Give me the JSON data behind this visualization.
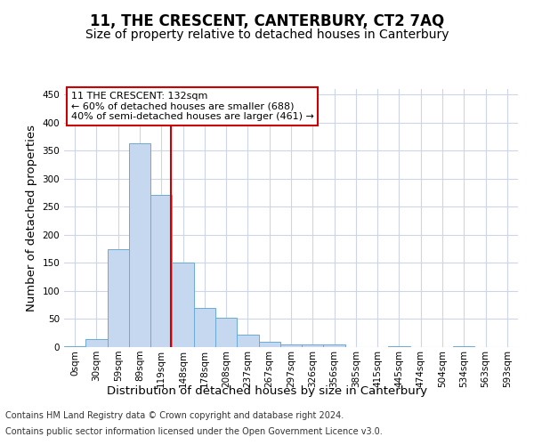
{
  "title": "11, THE CRESCENT, CANTERBURY, CT2 7AQ",
  "subtitle": "Size of property relative to detached houses in Canterbury",
  "xlabel": "Distribution of detached houses by size in Canterbury",
  "ylabel": "Number of detached properties",
  "bar_values": [
    2,
    15,
    175,
    363,
    272,
    150,
    70,
    53,
    23,
    9,
    5,
    5,
    5,
    0,
    0,
    2,
    0,
    0,
    2,
    0,
    0
  ],
  "bin_labels": [
    "0sqm",
    "30sqm",
    "59sqm",
    "89sqm",
    "119sqm",
    "148sqm",
    "178sqm",
    "208sqm",
    "237sqm",
    "267sqm",
    "297sqm",
    "326sqm",
    "356sqm",
    "385sqm",
    "415sqm",
    "445sqm",
    "474sqm",
    "504sqm",
    "534sqm",
    "563sqm",
    "593sqm"
  ],
  "bar_color": "#c5d8f0",
  "bar_edge_color": "#6aaad4",
  "red_line_color": "#cc0000",
  "annotation_line1": "11 THE CRESCENT: 132sqm",
  "annotation_line2": "← 60% of detached houses are smaller (688)",
  "annotation_line3": "40% of semi-detached houses are larger (461) →",
  "annotation_box_color": "#ffffff",
  "annotation_box_edge": "#cc0000",
  "ylim": [
    0,
    460
  ],
  "yticks": [
    0,
    50,
    100,
    150,
    200,
    250,
    300,
    350,
    400,
    450
  ],
  "footer_line1": "Contains HM Land Registry data © Crown copyright and database right 2024.",
  "footer_line2": "Contains public sector information licensed under the Open Government Licence v3.0.",
  "bg_color": "#ffffff",
  "grid_color": "#ccd6e8",
  "title_fontsize": 12,
  "subtitle_fontsize": 10,
  "axis_label_fontsize": 9.5,
  "tick_fontsize": 7.5,
  "annotation_fontsize": 8,
  "footer_fontsize": 7
}
